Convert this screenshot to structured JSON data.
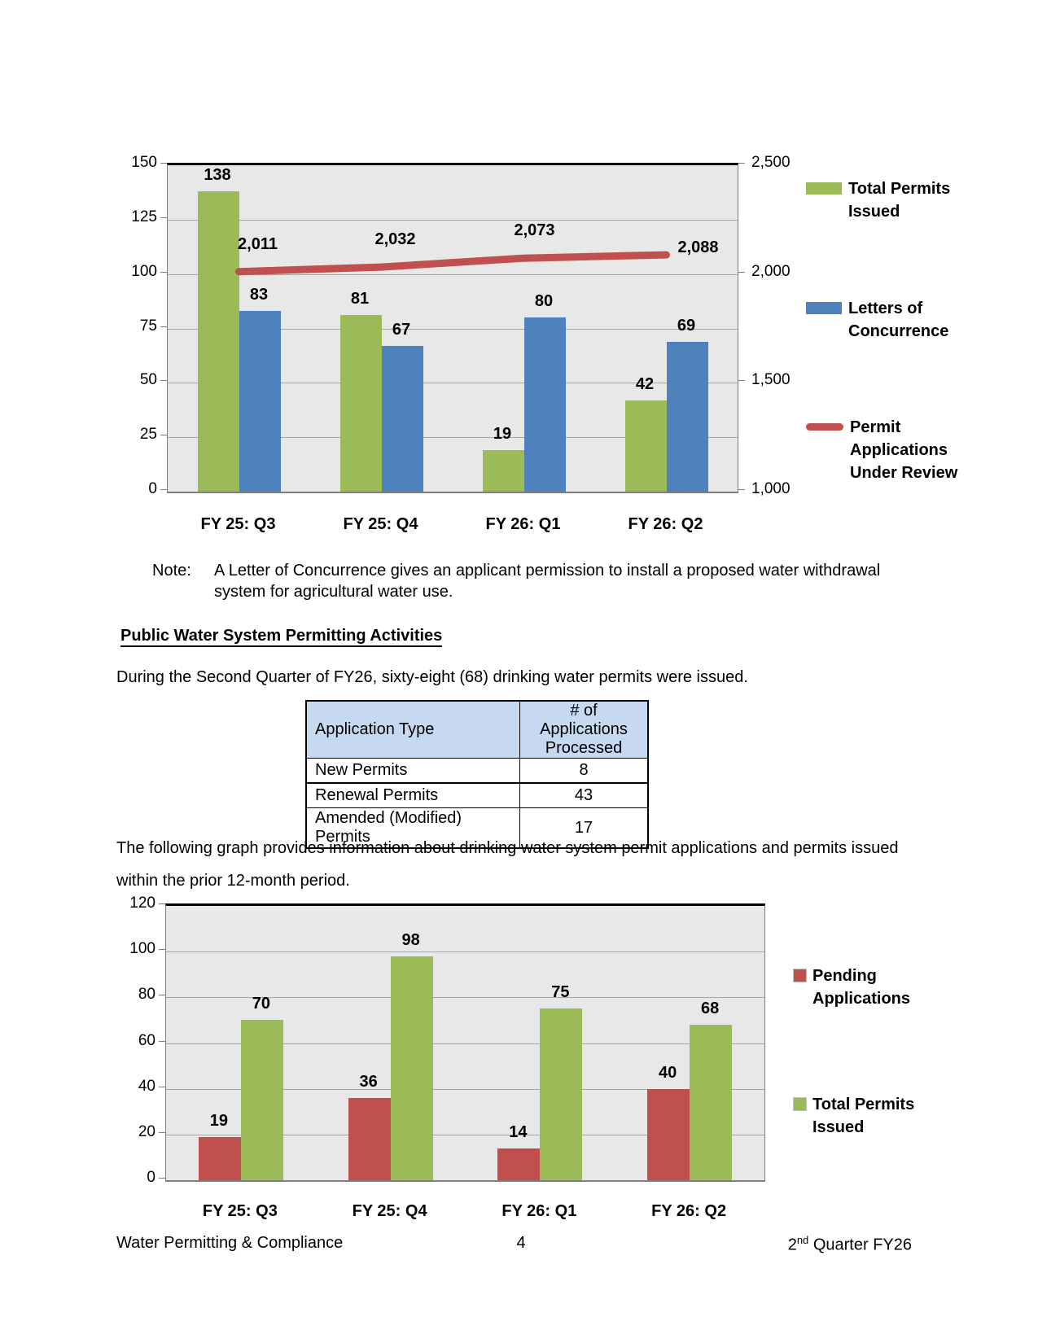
{
  "document": {
    "note_label": "Note:",
    "note_text": "A Letter of Concurrence gives an applicant permission to install a proposed water withdrawal system for agricultural water use.",
    "heading": "Public Water System Permitting Activities",
    "para1": "During the Second Quarter of FY26, sixty-eight (68) drinking water permits were issued.",
    "para2": "The following graph provides information about drinking water system permit applications and permits issued within the prior 12-month period.",
    "footer": {
      "left": "Water Permitting & Compliance",
      "page_number": "4",
      "right_base": "2",
      "right_sup": "nd",
      "right_rest": " Quarter FY26"
    }
  },
  "table": {
    "header_fill": "#C6D9F1",
    "headers": [
      "Application Type",
      "# of Applications Processed"
    ],
    "rows": [
      [
        "New Permits",
        "8"
      ],
      [
        "Renewal Permits",
        "43"
      ],
      [
        "Amended (Modified) Permits",
        "17"
      ]
    ]
  },
  "chart_data": [
    {
      "type": "bar",
      "subtype": "dual-axis bar + line",
      "categories": [
        "FY 25: Q3",
        "FY 25: Q4",
        "FY 26: Q1",
        "FY 26: Q2"
      ],
      "series": [
        {
          "name": "Total Permits Issued",
          "type": "bar",
          "axis": "left",
          "color": "#9BBB59",
          "values": [
            138,
            81,
            19,
            42
          ]
        },
        {
          "name": "Letters of Concurrence",
          "type": "bar",
          "axis": "left",
          "color": "#4F81BD",
          "values": [
            83,
            67,
            80,
            69
          ]
        },
        {
          "name": "Permit Applications Under Review",
          "type": "line",
          "axis": "right",
          "color": "#C0504D",
          "values": [
            2011,
            2032,
            2073,
            2088
          ],
          "labels": [
            "2,011",
            "2,032",
            "2,073",
            "2,088"
          ]
        }
      ],
      "left_axis": {
        "min": 0,
        "max": 150,
        "ticks": [
          "0",
          "25",
          "50",
          "75",
          "100",
          "125",
          "150"
        ]
      },
      "right_axis": {
        "min": 1000,
        "max": 2500,
        "ticks": [
          "1,000",
          "1,500",
          "2,000",
          "2,500"
        ]
      },
      "grid": true,
      "legend_position": "right",
      "plot_background": "#E8E8E8"
    },
    {
      "type": "bar",
      "categories": [
        "FY 25: Q3",
        "FY 25: Q4",
        "FY 26: Q1",
        "FY 26: Q2"
      ],
      "series": [
        {
          "name": "Pending Applications",
          "type": "bar",
          "axis": "left",
          "color": "#C0504D",
          "values": [
            19,
            36,
            14,
            40
          ]
        },
        {
          "name": "Total Permits Issued",
          "type": "bar",
          "axis": "left",
          "color": "#9BBB59",
          "values": [
            70,
            98,
            75,
            68
          ]
        }
      ],
      "left_axis": {
        "min": 0,
        "max": 120,
        "ticks": [
          "0",
          "20",
          "40",
          "60",
          "80",
          "100",
          "120"
        ]
      },
      "grid": true,
      "legend_position": "right",
      "plot_background": "#E8E8E8"
    }
  ]
}
